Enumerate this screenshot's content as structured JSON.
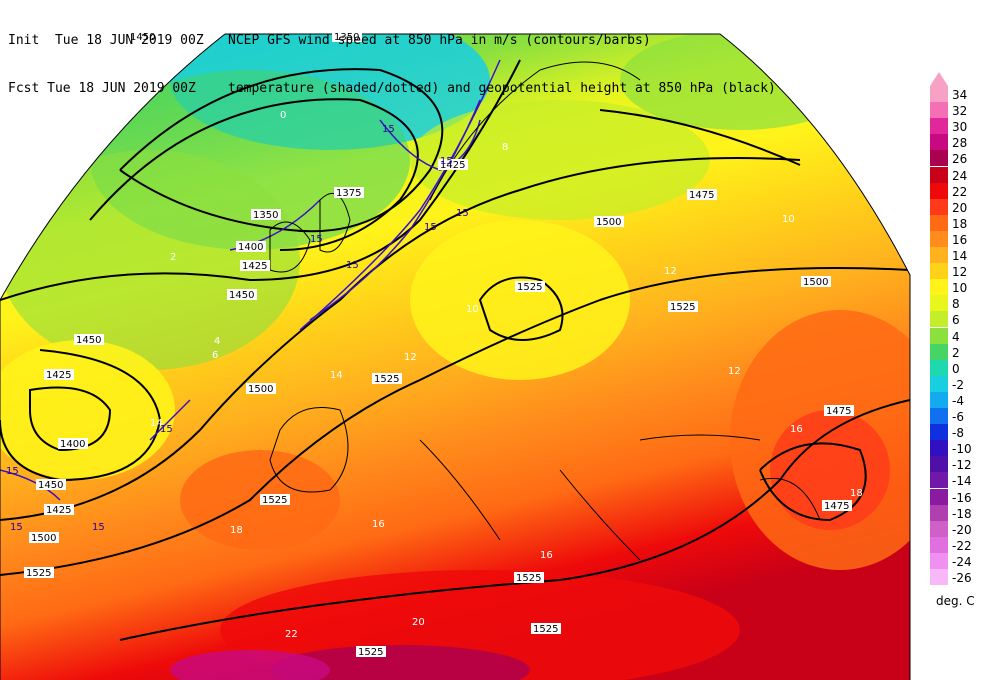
{
  "header": {
    "line1_left": "Init  Tue 18 JUN 2019 00Z",
    "line1_right": "NCEP GFS wind speed at 850 hPa in m/s (contours/barbs)",
    "line2_left": "Fcst Tue 18 JUN 2019 00Z",
    "line2_right": "temperature (shaded/dotted) and geopotential height at 850 hPa (black)"
  },
  "colorbar": {
    "unit": "deg. C",
    "levels": [
      "34",
      "32",
      "30",
      "28",
      "26",
      "24",
      "22",
      "20",
      "18",
      "16",
      "14",
      "12",
      "10",
      "8",
      "6",
      "4",
      "2",
      "0",
      "-2",
      "-4",
      "-6",
      "-8",
      "-10",
      "-12",
      "-14",
      "-16",
      "-18",
      "-20",
      "-22",
      "-24",
      "-26"
    ],
    "colors": [
      "#f7a1c4",
      "#f46fb4",
      "#e2279b",
      "#c80a82",
      "#aa0050",
      "#c80018",
      "#ee0a0a",
      "#ff3a1a",
      "#ff6a14",
      "#ff8c1c",
      "#ffb21e",
      "#ffd21a",
      "#fff31a",
      "#eaf51e",
      "#c5ee2a",
      "#8ce03e",
      "#46d465",
      "#1ed8b0",
      "#18cfe0",
      "#14aaf0",
      "#1070f0",
      "#1030e0",
      "#3010c0",
      "#5010a8",
      "#7018a8",
      "#8a1aa0",
      "#b040b0",
      "#d060c8",
      "#e070e0",
      "#f090f0",
      "#f8b8f8"
    ]
  },
  "height_labels": [
    "1350",
    "1375",
    "1350",
    "1400",
    "1425",
    "1450",
    "1425",
    "1450",
    "1475",
    "1500",
    "1525",
    "1450",
    "1425",
    "1400",
    "1450",
    "1425",
    "1500",
    "1525",
    "1500",
    "1525",
    "1525",
    "1525",
    "1525",
    "1525",
    "1475",
    "1475",
    "1500",
    "1525"
  ],
  "temp_labels": [
    "10",
    "12",
    "14",
    "16",
    "18",
    "20",
    "22",
    "8",
    "6",
    "4",
    "2",
    "0",
    "14",
    "16",
    "18",
    "16",
    "12",
    "10",
    "12"
  ],
  "wind_labels": [
    "15",
    "15",
    "15",
    "15",
    "15",
    "15",
    "15",
    "15",
    "15",
    "15"
  ]
}
